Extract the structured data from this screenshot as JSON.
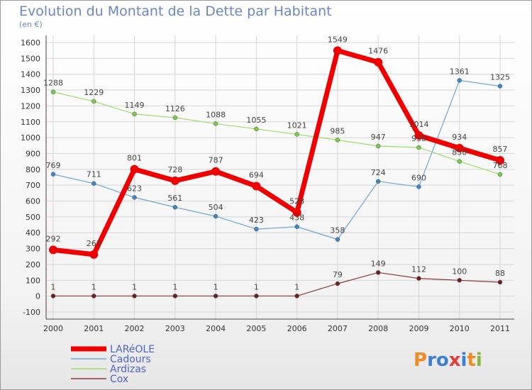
{
  "chart_data": {
    "type": "line",
    "title": "Evolution du Montant de la Dette par Habitant",
    "subtitle": "(en €)",
    "x": [
      "2000",
      "2001",
      "2002",
      "2003",
      "2004",
      "2005",
      "2006",
      "2007",
      "2008",
      "2009",
      "2010",
      "2011"
    ],
    "ylim": [
      -100,
      1600
    ],
    "yticks": [
      -100,
      0,
      100,
      200,
      300,
      400,
      500,
      600,
      700,
      800,
      900,
      1000,
      1100,
      1200,
      1300,
      1400,
      1500,
      1600
    ],
    "grid": true,
    "legend_position": "bottom-left",
    "series": [
      {
        "name": "Cadours",
        "color": "#6ea6d6",
        "dot": "#3d87c8",
        "width": 1.2,
        "r": 3,
        "values": [
          769,
          711,
          623,
          561,
          504,
          423,
          438,
          358,
          724,
          690,
          1361,
          1325
        ]
      },
      {
        "name": "Ardizas",
        "color": "#9ade6b",
        "dot": "#79c94a",
        "width": 1.2,
        "r": 3,
        "values": [
          1288,
          1229,
          1149,
          1126,
          1088,
          1055,
          1021,
          985,
          947,
          938,
          850,
          768
        ]
      },
      {
        "name": "Cox",
        "color": "#8a3a3a",
        "dot": "#6e2020",
        "width": 1.2,
        "r": 3,
        "values": [
          1,
          1,
          1,
          1,
          1,
          1,
          1,
          79,
          149,
          112,
          100,
          88
        ]
      },
      {
        "name": "LARéOLE",
        "color": "#ee0000",
        "dot": "#ee0000",
        "width": 7,
        "r": 6,
        "values": [
          292,
          263,
          801,
          728,
          787,
          694,
          528,
          1549,
          1476,
          1014,
          934,
          857
        ]
      }
    ],
    "data_labels": {
      "Cadours": [
        "769",
        "711",
        "623",
        "561",
        "504",
        "423",
        "438",
        "358",
        "724",
        "690",
        "1361",
        "1325"
      ],
      "Ardizas": [
        "1288",
        "1229",
        "1149",
        "1126",
        "1088",
        "1055",
        "1021",
        "985",
        "947",
        "938",
        "850",
        "768"
      ],
      "Cox": [
        "1",
        "1",
        "1",
        "1",
        "1",
        "1",
        "1",
        "79",
        "149",
        "112",
        "100",
        "88"
      ],
      "LARéOLE": [
        "292",
        "263",
        "801",
        "728",
        "787",
        "694",
        "528",
        "1549",
        "1476",
        "1014",
        "934",
        "857"
      ]
    },
    "legend": [
      "LARéOLE",
      "Cadours",
      "Ardizas",
      "Cox"
    ]
  },
  "logo": {
    "text": "Proxiti",
    "letters": [
      "P",
      "r",
      "o",
      "x",
      "i",
      "t",
      "i"
    ],
    "colors": [
      "#f08a24",
      "#3d7fd0",
      "#3d7fd0",
      "#e23c3c",
      "#3d7fd0",
      "#f08a24",
      "#86b93b"
    ]
  }
}
